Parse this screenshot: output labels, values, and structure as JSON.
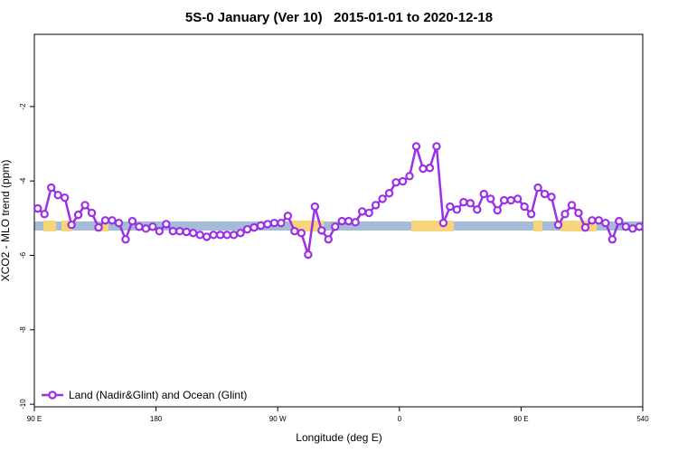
{
  "chart_data": {
    "type": "line",
    "title": "5S-0 January (Ver 10)   2015-01-01 to 2020-12-18",
    "xlabel": "Longitude (deg E)",
    "ylabel": "XCO2 - MLO trend (ppm)",
    "xlim": [
      90,
      540
    ],
    "xticks": [
      {
        "value": 90,
        "label": "90 E"
      },
      180,
      {
        "value": 270,
        "label": "90 W"
      },
      {
        "value": 360,
        "label": "0"
      },
      {
        "value": 450,
        "label": "90 E"
      },
      540
    ],
    "ylim": [
      -10.07,
      -0.06
    ],
    "yticks": [
      -2,
      -4,
      -6,
      -8,
      -10
    ],
    "legend": "bottom-left",
    "x": [
      92.5,
      97.5,
      102.5,
      107.5,
      112.5,
      117.5,
      122.5,
      127.5,
      132.5,
      137.5,
      142.5,
      147.5,
      152.5,
      157.5,
      162.5,
      167.5,
      172.5,
      177.5,
      182.5,
      187.5,
      192.5,
      197.5,
      202.5,
      207.5,
      212.5,
      217.5,
      222.5,
      227.5,
      232.5,
      237.5,
      242.5,
      247.5,
      252.5,
      257.5,
      262.5,
      267.5,
      272.5,
      277.5,
      282.5,
      287.5,
      292.5,
      297.5,
      302.5,
      307.5,
      312.5,
      317.5,
      322.5,
      327.5,
      332.5,
      337.5,
      342.5,
      347.5,
      352.5,
      357.5,
      362.5,
      367.5,
      372.5,
      377.5,
      382.5,
      387.5,
      392.5,
      397.5,
      402.5,
      407.5,
      412.5,
      417.5,
      422.5,
      427.5,
      432.5,
      437.5,
      442.5,
      447.5,
      452.5,
      457.5,
      462.5,
      467.5,
      472.5,
      477.5,
      482.5,
      487.5,
      492.5,
      497.5,
      502.5,
      507.5,
      512.5,
      517.5,
      522.5,
      527.5,
      532.5,
      537.5
    ],
    "series": [
      {
        "name": "Land (Nadir&Glint) and Ocean (Glint)",
        "color": "#9b30e6",
        "values": [
          -4.74,
          -4.89,
          -4.18,
          -4.38,
          -4.45,
          -5.18,
          -4.91,
          -4.65,
          -4.86,
          -5.25,
          -5.06,
          -5.06,
          -5.13,
          -5.57,
          -5.08,
          -5.23,
          -5.28,
          -5.23,
          -5.35,
          -5.16,
          -5.35,
          -5.35,
          -5.37,
          -5.4,
          -5.45,
          -5.5,
          -5.45,
          -5.45,
          -5.45,
          -5.45,
          -5.4,
          -5.3,
          -5.25,
          -5.2,
          -5.16,
          -5.13,
          -5.13,
          -4.94,
          -5.35,
          -5.4,
          -5.98,
          -4.69,
          -5.33,
          -5.57,
          -5.23,
          -5.08,
          -5.08,
          -5.11,
          -4.82,
          -4.86,
          -4.65,
          -4.48,
          -4.33,
          -4.04,
          -4.01,
          -3.87,
          -3.07,
          -3.67,
          -3.65,
          -3.07,
          -5.13,
          -4.69,
          -4.77,
          -4.57,
          -4.6,
          -4.77,
          -4.35,
          -4.48,
          -4.79,
          -4.52,
          -4.52,
          -4.48,
          -4.69,
          -4.89,
          -4.18,
          -4.35,
          -4.43,
          -5.18,
          -4.89,
          -4.65,
          -4.86,
          -5.25,
          -5.06,
          -5.06,
          -5.13,
          -5.57,
          -5.08,
          -5.23,
          -5.28,
          -5.23
        ]
      }
    ]
  }
}
